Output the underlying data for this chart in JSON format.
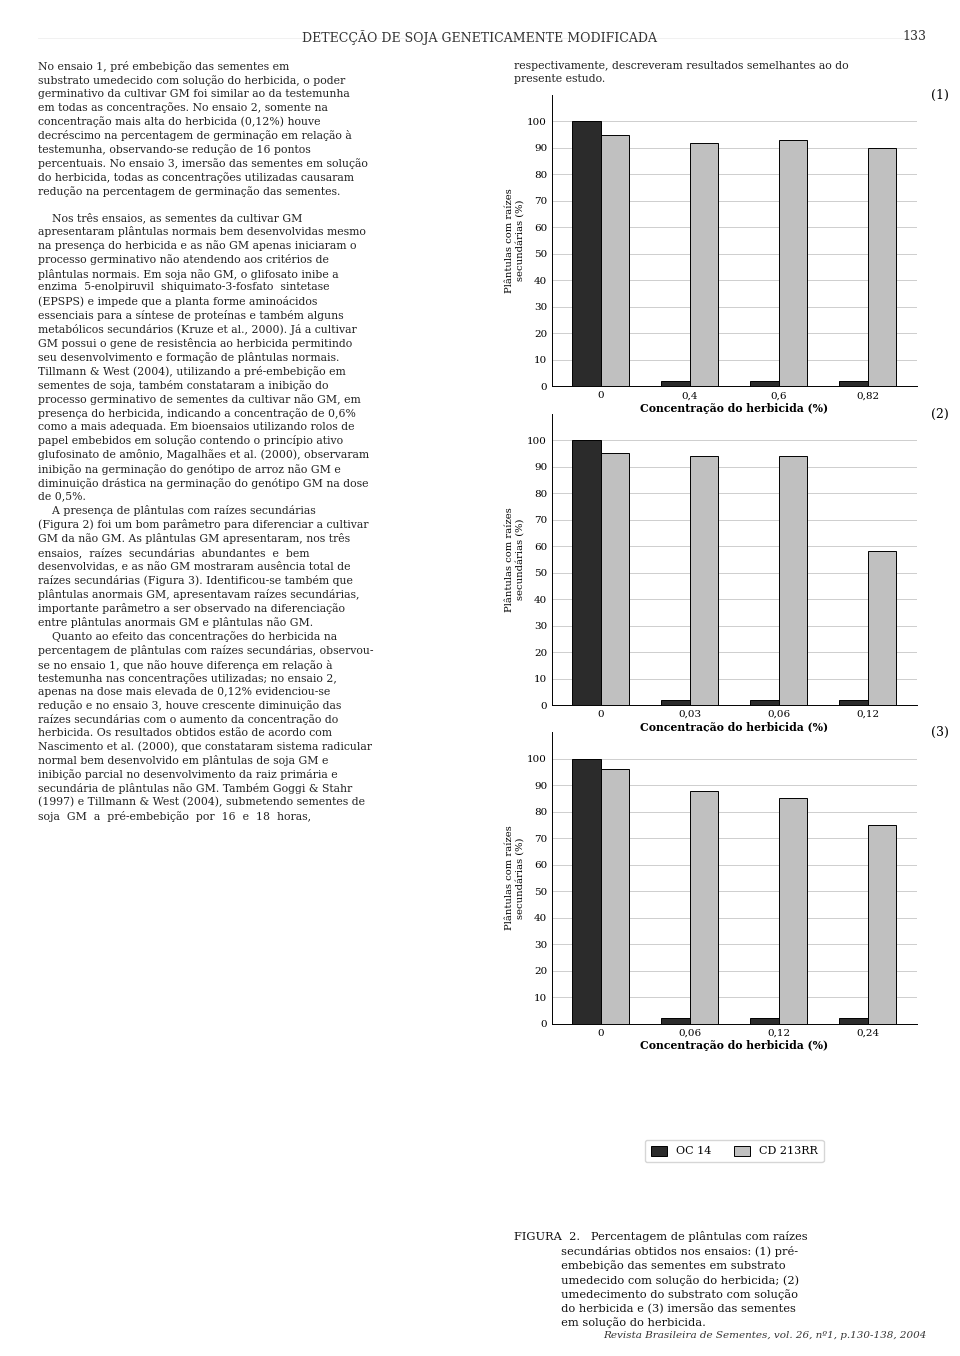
{
  "page_title": "DETECÇÃO DE SOJA GENETICAMENTE MODIFICADA",
  "page_number": "133",
  "footer": "Revista Brasileira de Sementes, vol. 26, nº1, p.130-138, 2004",
  "left_col_text": [
    "No ensaio 1, pré embebição das sementes em",
    "substrato umedecido com solução do herbicida, o poder",
    "germinativo da cultivar GM foi similar ao da testemunha",
    "em todas as concentrações. No ensaio 2, somente na",
    "concentração mais alta do herbicida (0,12%) houve",
    "decréscimo na percentagem de germinação em relação à",
    "testemunha, observando-se redução de 16 pontos",
    "percentuais. No ensaio 3, imersão das sementes em solução",
    "do herbicida, todas as concentrações utilizadas causaram",
    "redução na percentagem de germinação das sementes.",
    "",
    "    Nos três ensaios, as sementes da cultivar GM",
    "apresentaram plântulas normais bem desenvolvidas mesmo",
    "na presença do herbicida e as não GM apenas iniciaram o",
    "processo germinativo não atendendo aos critérios de",
    "plântulas normais. Em soja não GM, o glifosato inibe a",
    "enzima  5-enolpiruvil  shiquimato-3-fosfato  sintetase",
    "(EPSPS) e impede que a planta forme aminoácidos",
    "essenciais para a síntese de proteínas e também alguns",
    "metabólicos secundários (Kruze et al., 2000). Já a cultivar",
    "GM possui o gene de resistência ao herbicida permitindo",
    "seu desenvolvimento e formação de plântulas normais.",
    "Tillmann & West (2004), utilizando a pré-embebição em",
    "sementes de soja, também constataram a inibição do",
    "processo germinativo de sementes da cultivar não GM, em",
    "presença do herbicida, indicando a concentração de 0,6%",
    "como a mais adequada. Em bioensaios utilizando rolos de",
    "papel embebidos em solução contendo o princípio ativo",
    "glufosinato de amônio, Magalhães et al. (2000), observaram",
    "inibição na germinação do genótipo de arroz não GM e",
    "diminuição drástica na germinação do genótipo GM na dose",
    "de 0,5%.",
    "    A presença de plântulas com raízes secundárias",
    "(Figura 2) foi um bom parâmetro para diferenciar a cultivar",
    "GM da não GM. As plântulas GM apresentaram, nos três",
    "ensaios,  raízes  secundárias  abundantes  e  bem",
    "desenvolvidas, e as não GM mostraram ausência total de",
    "raízes secundárias (Figura 3). Identificou-se também que",
    "plântulas anormais GM, apresentavam raízes secundárias,",
    "importante parâmetro a ser observado na diferenciação",
    "entre plântulas anormais GM e plântulas não GM.",
    "    Quanto ao efeito das concentrações do herbicida na",
    "percentagem de plântulas com raízes secundárias, observou-",
    "se no ensaio 1, que não houve diferença em relação à",
    "testemunha nas concentrações utilizadas; no ensaio 2,",
    "apenas na dose mais elevada de 0,12% evidenciou-se",
    "redução e no ensaio 3, houve crescente diminuição das",
    "raízes secundárias com o aumento da concentração do",
    "herbicida. Os resultados obtidos estão de acordo com",
    "Nascimento et al. (2000), que constataram sistema radicular",
    "normal bem desenvolvido em plântulas de soja GM e",
    "inibição parcial no desenvolvimento da raiz primária e",
    "secundária de plântulas não GM. Também Goggi & Stahr",
    "(1997) e Tillmann & West (2004), submetendo sementes de",
    "soja  GM  a  pré-embebição  por  16  e  18  horas,"
  ],
  "right_col_top_text": [
    "respectivamente, descreveram resultados semelhantes ao do",
    "presente estudo."
  ],
  "figura_caption": "FIGURA  2.   Percentagem de plântulas com raízes\n             secundárias obtidos nos ensaios: (1) pré-\n             embebição das sementes em substrato\n             umedecido com solução do herbicida; (2)\n             umedecimento do substrato com solução\n             do herbicida e (3) imersão das sementes\n             em solução do herbicida.",
  "charts": [
    {
      "label_num": "(1)",
      "x_labels": [
        "0",
        "0,4",
        "0,6",
        "0,82"
      ],
      "oc14_values": [
        100,
        2,
        2,
        2
      ],
      "cd213rr_values": [
        95,
        92,
        93,
        90
      ],
      "xlabel": "Concentração do herbicida (%)",
      "ylabel": "Plântulas com raízes\nsecundárias (%)",
      "ylim": [
        0,
        110
      ],
      "yticks": [
        0,
        10,
        20,
        30,
        40,
        50,
        60,
        70,
        80,
        90,
        100
      ]
    },
    {
      "label_num": "(2)",
      "x_labels": [
        "0",
        "0,03",
        "0,06",
        "0,12"
      ],
      "oc14_values": [
        100,
        2,
        2,
        2
      ],
      "cd213rr_values": [
        95,
        94,
        94,
        58
      ],
      "xlabel": "Concentração do herbicida (%)",
      "ylabel": "Plântulas com raízes\nsecundárias (%)",
      "ylim": [
        0,
        110
      ],
      "yticks": [
        0,
        10,
        20,
        30,
        40,
        50,
        60,
        70,
        80,
        90,
        100
      ]
    },
    {
      "label_num": "(3)",
      "x_labels": [
        "0",
        "0,06",
        "0,12",
        "0,24"
      ],
      "oc14_values": [
        100,
        2,
        2,
        2
      ],
      "cd213rr_values": [
        96,
        88,
        85,
        75
      ],
      "xlabel": "Concentração do herbicida (%)",
      "ylabel": "Plântulas com raízes\nsecundárias (%)",
      "ylim": [
        0,
        110
      ],
      "yticks": [
        0,
        10,
        20,
        30,
        40,
        50,
        60,
        70,
        80,
        90,
        100
      ]
    }
  ],
  "legend_labels": [
    "OC 14",
    "CD 213RR"
  ],
  "bar_color_oc14": "#2b2b2b",
  "bar_color_cd213rr": "#c0c0c0",
  "bar_edge_color": "#000000",
  "background_color": "#ffffff"
}
